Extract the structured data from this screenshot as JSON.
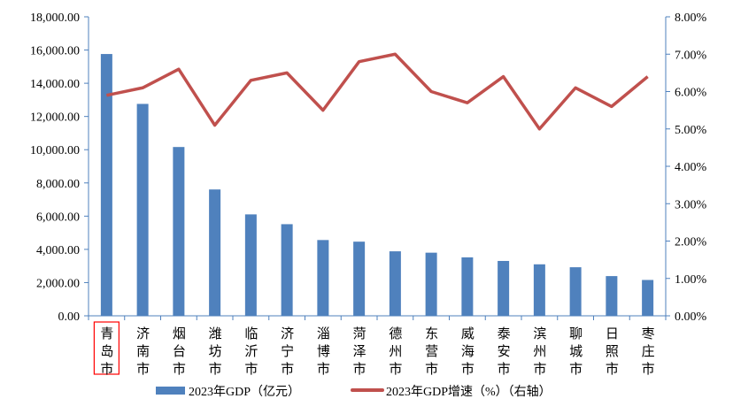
{
  "chart_data": {
    "type": "bar+line",
    "categories": [
      "青岛市",
      "济南市",
      "烟台市",
      "潍坊市",
      "临沂市",
      "济宁市",
      "淄博市",
      "菏泽市",
      "德州市",
      "东营市",
      "威海市",
      "泰安市",
      "滨州市",
      "聊城市",
      "日照市",
      "枣庄市"
    ],
    "highlighted_category": "青岛市",
    "series": [
      {
        "name": "2023年GDP（亿元）",
        "type": "bar",
        "axis": "left",
        "color": "#4F81BD",
        "values": [
          15760,
          12757,
          10162,
          7606,
          6105,
          5516,
          4562,
          4464,
          3883,
          3800,
          3519,
          3303,
          3100,
          2924,
          2391,
          2158
        ]
      },
      {
        "name": "2023年GDP增速（%）（右轴）",
        "type": "line",
        "axis": "right",
        "color": "#C0504D",
        "values": [
          5.9,
          6.1,
          6.6,
          5.1,
          6.3,
          6.5,
          5.5,
          6.8,
          7.0,
          6.0,
          5.7,
          6.4,
          5.0,
          6.1,
          5.6,
          6.4
        ]
      }
    ],
    "left_axis": {
      "ylim": [
        0,
        18000
      ],
      "ticks": [
        "0.00",
        "2,000.00",
        "4,000.00",
        "6,000.00",
        "8,000.00",
        "10,000.00",
        "12,000.00",
        "14,000.00",
        "16,000.00",
        "18,000.00"
      ]
    },
    "right_axis": {
      "ylim": [
        0,
        8
      ],
      "ticks": [
        "0.00%",
        "1.00%",
        "2.00%",
        "3.00%",
        "4.00%",
        "5.00%",
        "6.00%",
        "7.00%",
        "8.00%"
      ]
    },
    "grid": false,
    "legend": "bottom",
    "highlight_color": "#FF0000"
  }
}
